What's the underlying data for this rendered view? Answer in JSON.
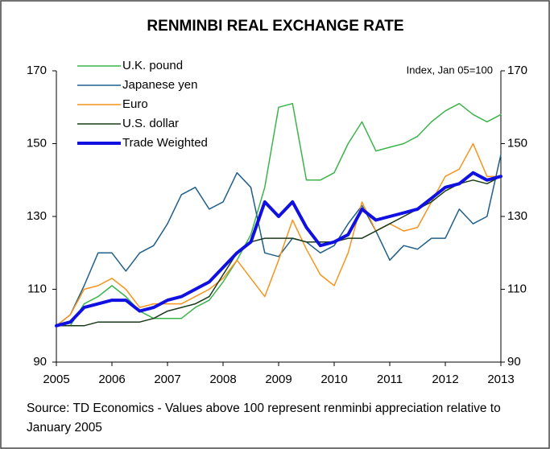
{
  "chart_data": {
    "type": "line",
    "title": "RENMINBI REAL EXCHANGE RATE",
    "annotation": "Index, Jan 05=100",
    "note": "Source: TD Economics - Values above 100 represent renminbi appreciation relative to January 2005",
    "x": [
      2005,
      2005.25,
      2005.5,
      2005.75,
      2006,
      2006.25,
      2006.5,
      2006.75,
      2007,
      2007.25,
      2007.5,
      2007.75,
      2008,
      2008.25,
      2008.5,
      2008.75,
      2009,
      2009.25,
      2009.5,
      2009.75,
      2010,
      2010.25,
      2010.5,
      2010.75,
      2011,
      2011.25,
      2011.5,
      2011.75,
      2012,
      2012.25,
      2012.5,
      2012.75,
      2013
    ],
    "series": [
      {
        "name": "U.K. pound",
        "color": "#3bb44a",
        "width": 1.5,
        "values": [
          100,
          100,
          106,
          108,
          111,
          108,
          104,
          102,
          102,
          102,
          105,
          107,
          112,
          118,
          125,
          138,
          160,
          161,
          140,
          140,
          142,
          150,
          156,
          148,
          149,
          150,
          152,
          156,
          159,
          161,
          158,
          156,
          158
        ]
      },
      {
        "name": "Japanese yen",
        "color": "#1f5f8b",
        "width": 1.5,
        "values": [
          100,
          103,
          111,
          120,
          120,
          115,
          120,
          122,
          128,
          136,
          138,
          132,
          134,
          142,
          138,
          120,
          119,
          124,
          123,
          120,
          122,
          128,
          133,
          126,
          118,
          122,
          121,
          124,
          124,
          132,
          128,
          130,
          147
        ]
      },
      {
        "name": "Euro",
        "color": "#f7941d",
        "width": 1.5,
        "values": [
          100,
          103,
          110,
          111,
          113,
          110,
          105,
          106,
          106,
          106,
          108,
          110,
          113,
          118,
          113,
          108,
          118,
          129,
          121,
          114,
          111,
          120,
          134,
          126,
          128,
          126,
          127,
          134,
          141,
          143,
          150,
          141,
          141
        ]
      },
      {
        "name": "U.S. dollar",
        "color": "#1a3a1a",
        "width": 1.5,
        "values": [
          100,
          100,
          100,
          101,
          101,
          101,
          101,
          102,
          104,
          105,
          106,
          108,
          114,
          120,
          123,
          124,
          124,
          124,
          123,
          123,
          123,
          124,
          124,
          126,
          128,
          130,
          132,
          134,
          137,
          139,
          140,
          139,
          141
        ]
      },
      {
        "name": "Trade Weighted",
        "color": "#1010e0",
        "width": 4,
        "values": [
          100,
          101,
          105,
          106,
          107,
          107,
          104,
          105,
          107,
          108,
          110,
          112,
          116,
          120,
          123,
          134,
          130,
          134,
          127,
          122,
          123,
          125,
          132,
          129,
          130,
          131,
          132,
          135,
          138,
          139,
          142,
          140,
          141
        ]
      }
    ],
    "xlim": [
      2005,
      2013
    ],
    "xticks": [
      2005,
      2006,
      2007,
      2008,
      2009,
      2010,
      2011,
      2012,
      2013
    ],
    "ylim": [
      90,
      170
    ],
    "yticks": [
      90,
      110,
      130,
      150,
      170
    ],
    "y2lim": [
      90,
      170
    ],
    "y2ticks": [
      90,
      110,
      130,
      150,
      170
    ],
    "grid": false,
    "legend": "top-left"
  }
}
